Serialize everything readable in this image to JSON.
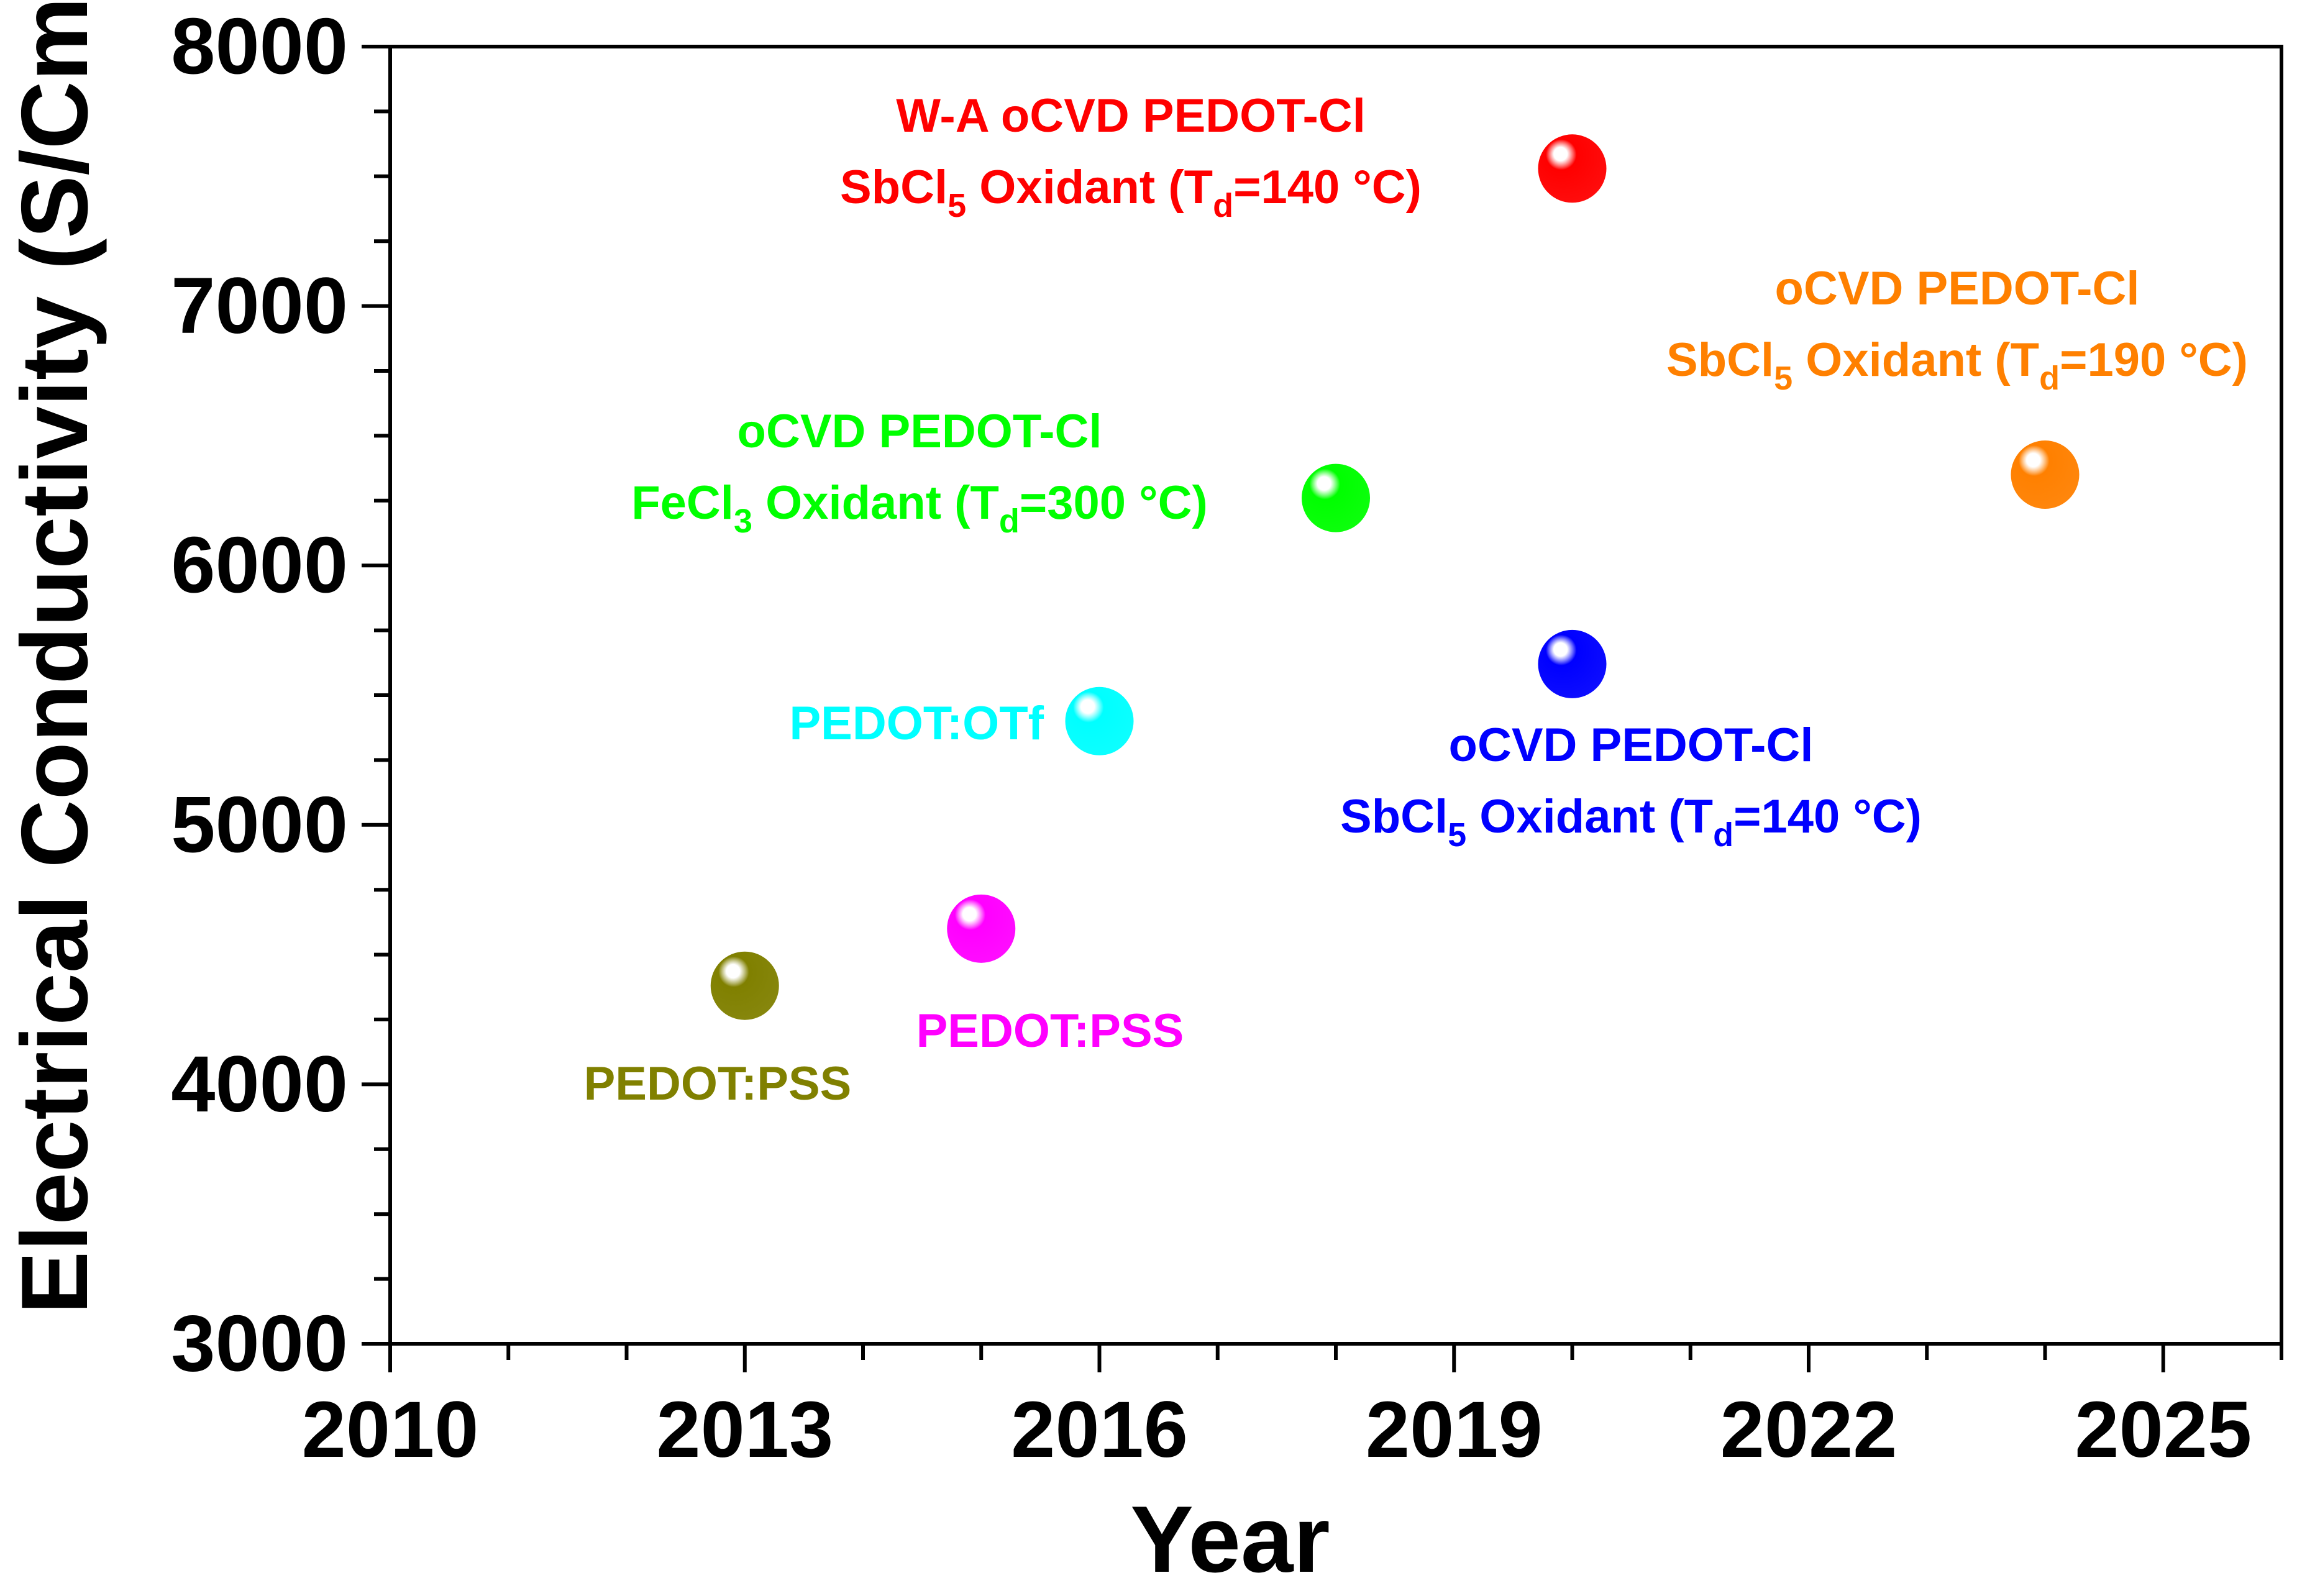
{
  "chart_data": {
    "type": "scatter",
    "xlabel": "Year",
    "ylabel": "Electrical Conductivity (S/Cm)",
    "xlim": [
      2010,
      2026
    ],
    "ylim": [
      3000,
      8000
    ],
    "xticks": [
      2010,
      2013,
      2016,
      2019,
      2022,
      2025
    ],
    "yticks": [
      3000,
      4000,
      5000,
      6000,
      7000,
      8000
    ],
    "x_minor_step": 1,
    "y_minor_step": 250,
    "points": [
      {
        "id": "pedot-pss-2013",
        "x": 2013,
        "y": 4380,
        "color": "#808000",
        "label": [
          {
            "parts": [
              {
                "t": "PEDOT:PSS"
              }
            ]
          }
        ]
      },
      {
        "id": "pedot-pss-2015",
        "x": 2015,
        "y": 4600,
        "color": "#ff00ff",
        "label": [
          {
            "parts": [
              {
                "t": "PEDOT:PSS"
              }
            ]
          }
        ]
      },
      {
        "id": "pedot-otf-2016",
        "x": 2016,
        "y": 5400,
        "color": "#00ffff",
        "label": [
          {
            "parts": [
              {
                "t": "PEDOT:OTf"
              }
            ]
          }
        ]
      },
      {
        "id": "ocvd-fecl3-2018",
        "x": 2018,
        "y": 6260,
        "color": "#00ff00",
        "label": [
          {
            "parts": [
              {
                "t": "oCVD PEDOT-Cl"
              }
            ]
          },
          {
            "parts": [
              {
                "t": "FeCl"
              },
              {
                "t": "3",
                "sub": true
              },
              {
                "t": " Oxidant (T"
              },
              {
                "t": "d",
                "sub": true
              },
              {
                "t": "=300 °C)"
              }
            ]
          }
        ]
      },
      {
        "id": "ocvd-sbcl5-140-2020",
        "x": 2020,
        "y": 5620,
        "color": "#0000ff",
        "label": [
          {
            "parts": [
              {
                "t": "oCVD PEDOT-Cl"
              }
            ]
          },
          {
            "parts": [
              {
                "t": "SbCl"
              },
              {
                "t": "5",
                "sub": true
              },
              {
                "t": " Oxidant (T"
              },
              {
                "t": "d",
                "sub": true
              },
              {
                "t": "=140 °C)"
              }
            ]
          }
        ]
      },
      {
        "id": "wa-ocvd-sbcl5-140-2020",
        "x": 2020,
        "y": 7530,
        "color": "#ff0000",
        "label": [
          {
            "parts": [
              {
                "t": "W-A oCVD PEDOT-Cl"
              }
            ]
          },
          {
            "parts": [
              {
                "t": "SbCl"
              },
              {
                "t": "5",
                "sub": true
              },
              {
                "t": " Oxidant (T"
              },
              {
                "t": "d",
                "sub": true
              },
              {
                "t": "=140 °C)"
              }
            ]
          }
        ]
      },
      {
        "id": "ocvd-sbcl5-190-2024",
        "x": 2024,
        "y": 6350,
        "color": "#ff8000",
        "label": [
          {
            "parts": [
              {
                "t": "oCVD PEDOT-Cl"
              }
            ]
          },
          {
            "parts": [
              {
                "t": "SbCl"
              },
              {
                "t": "5",
                "sub": true
              },
              {
                "t": " Oxidant (T"
              },
              {
                "t": "d",
                "sub": true
              },
              {
                "t": "=190 °C)"
              }
            ]
          }
        ]
      }
    ]
  }
}
